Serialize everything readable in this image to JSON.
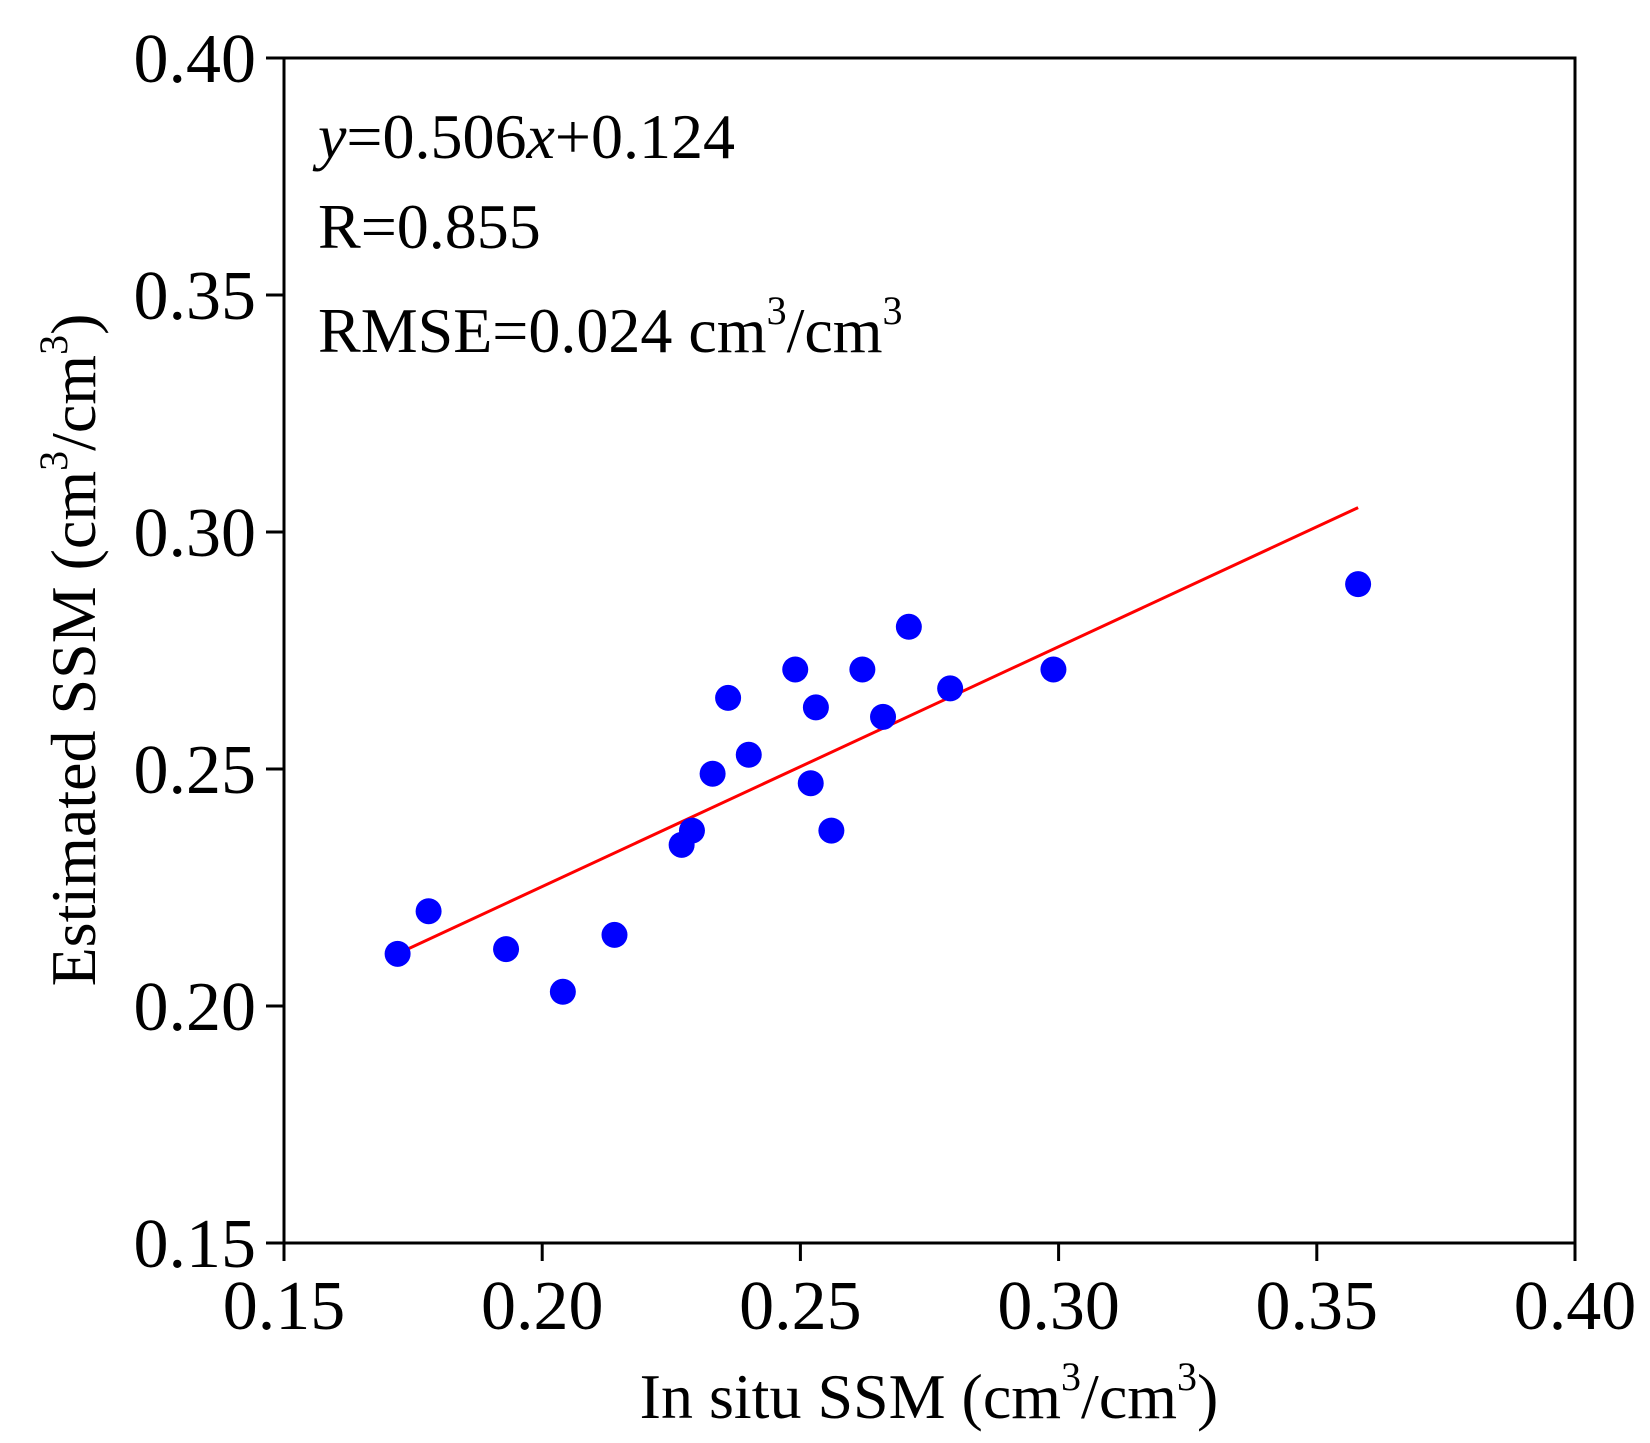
{
  "chart_data": {
    "type": "scatter",
    "xlabel": "In situ SSM (cm³/cm³)",
    "ylabel": "Estimated SSM (cm³/cm³)",
    "xlabel_parts": {
      "main": "In situ SSM (cm",
      "sup1": "3",
      "mid": "/cm",
      "sup2": "3",
      "end": ")"
    },
    "ylabel_parts": {
      "main": "Estimated SSM (cm",
      "sup1": "3",
      "mid": "/cm",
      "sup2": "3",
      "end": ")"
    },
    "xlim": [
      0.15,
      0.4
    ],
    "ylim": [
      0.15,
      0.4
    ],
    "xticks": [
      "0.15",
      "0.20",
      "0.25",
      "0.30",
      "0.35",
      "0.40"
    ],
    "yticks": [
      "0.15",
      "0.20",
      "0.25",
      "0.30",
      "0.35",
      "0.40"
    ],
    "grid": false,
    "marker_color": "#0000ff",
    "fit_color": "#ff0000",
    "annotations": {
      "equation": {
        "y": "y",
        "coef": "=0.506",
        "x": "x",
        "rest": "+0.124"
      },
      "r": "R=0.855",
      "rmse": {
        "main": "RMSE=0.024 cm",
        "sup1": "3",
        "mid": "/cm",
        "sup2": "3"
      }
    },
    "fit": {
      "slope": 0.506,
      "intercept": 0.124,
      "x_range": [
        0.172,
        0.358
      ]
    },
    "points": [
      {
        "x": 0.172,
        "y": 0.211
      },
      {
        "x": 0.178,
        "y": 0.22
      },
      {
        "x": 0.193,
        "y": 0.212
      },
      {
        "x": 0.204,
        "y": 0.203
      },
      {
        "x": 0.214,
        "y": 0.215
      },
      {
        "x": 0.227,
        "y": 0.234
      },
      {
        "x": 0.229,
        "y": 0.237
      },
      {
        "x": 0.233,
        "y": 0.249
      },
      {
        "x": 0.236,
        "y": 0.265
      },
      {
        "x": 0.24,
        "y": 0.253
      },
      {
        "x": 0.249,
        "y": 0.271
      },
      {
        "x": 0.252,
        "y": 0.247
      },
      {
        "x": 0.253,
        "y": 0.263
      },
      {
        "x": 0.256,
        "y": 0.237
      },
      {
        "x": 0.262,
        "y": 0.271
      },
      {
        "x": 0.266,
        "y": 0.261
      },
      {
        "x": 0.271,
        "y": 0.28
      },
      {
        "x": 0.279,
        "y": 0.267
      },
      {
        "x": 0.299,
        "y": 0.271
      },
      {
        "x": 0.358,
        "y": 0.289
      }
    ]
  }
}
